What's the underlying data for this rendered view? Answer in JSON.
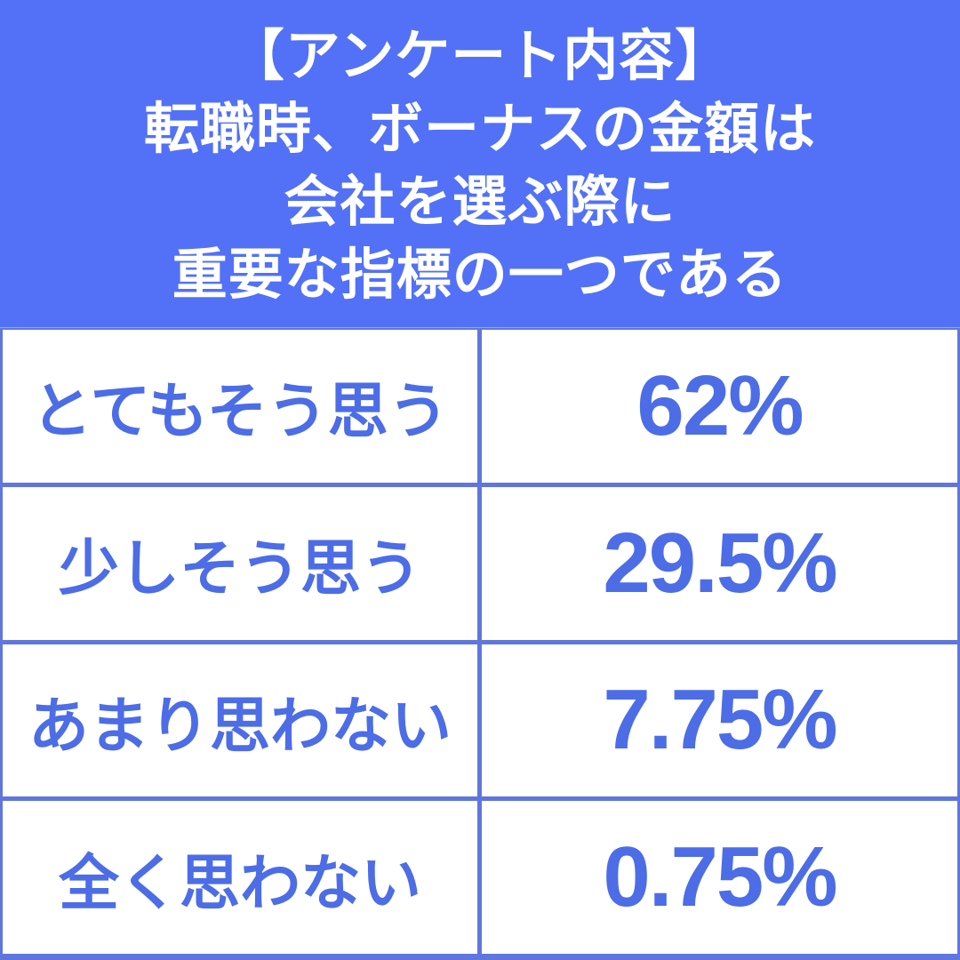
{
  "colors": {
    "background_blue": "#5271F7",
    "grid_line_blue": "#6076DF",
    "table_text_blue": "#4C6DE6",
    "header_text": "#FFFFFF",
    "cell_background": "#FFFFFF"
  },
  "header": {
    "lines": [
      "【アンケート内容】",
      "転職時、ボーナスの金額は",
      "会社を選ぶ際に",
      "重要な指標の一つである"
    ]
  },
  "chart_data": {
    "type": "table",
    "title": "【アンケート内容】転職時、ボーナスの金額は会社を選ぶ際に重要な指標の一つである",
    "categories": [
      "とてもそう思う",
      "少しそう思う",
      "あまり思わない",
      "全く思わない"
    ],
    "values": [
      62,
      29.5,
      7.75,
      0.75
    ],
    "value_labels": [
      "62%",
      "29.5%",
      "7.75%",
      "0.75%"
    ],
    "columns": [
      "answer",
      "percentage"
    ],
    "layout": {
      "rows": 4,
      "columns": 2,
      "grid_on": true,
      "value_unit": "%"
    }
  }
}
